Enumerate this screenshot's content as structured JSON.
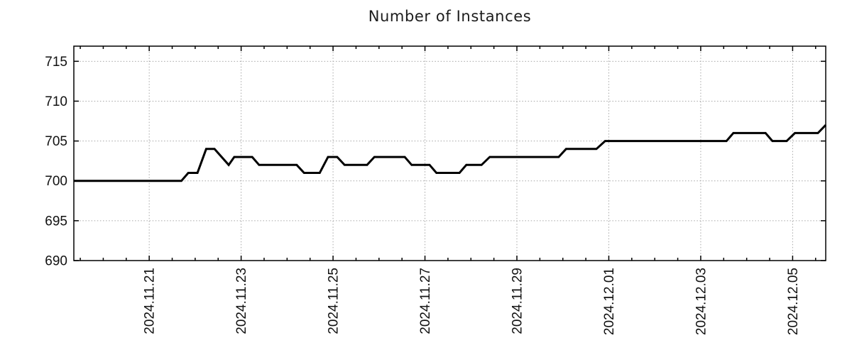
{
  "chart_data": {
    "type": "line",
    "title": "Number of Instances",
    "xlabel": "",
    "ylabel": "",
    "grid": true,
    "legend": "none",
    "x_unit": "days since 2024-11-19 00:00",
    "xlim": [
      0.36,
      16.72
    ],
    "ylim": [
      690,
      716.9
    ],
    "x_tick_label_rotation": 90,
    "x_minor_step": 0.5,
    "x_ticks": [
      {
        "t": 2,
        "label": "2024.11.21"
      },
      {
        "t": 4,
        "label": "2024.11.23"
      },
      {
        "t": 6,
        "label": "2024.11.25"
      },
      {
        "t": 8,
        "label": "2024.11.27"
      },
      {
        "t": 10,
        "label": "2024.11.29"
      },
      {
        "t": 12,
        "label": "2024.12.01"
      },
      {
        "t": 14,
        "label": "2024.12.03"
      },
      {
        "t": 16,
        "label": "2024.12.05"
      }
    ],
    "y_ticks": [
      {
        "v": 690,
        "label": "690"
      },
      {
        "v": 695,
        "label": "695"
      },
      {
        "v": 700,
        "label": "700"
      },
      {
        "v": 705,
        "label": "705"
      },
      {
        "v": 710,
        "label": "710"
      },
      {
        "v": 715,
        "label": "715"
      }
    ],
    "grid_color": "#a6a6a6",
    "axis_color": "#000000",
    "series": [
      {
        "name": "instances",
        "color": "#000000",
        "points": [
          [
            0.36,
            700
          ],
          [
            2.7,
            700
          ],
          [
            2.85,
            701
          ],
          [
            3.05,
            701
          ],
          [
            3.24,
            704
          ],
          [
            3.42,
            704
          ],
          [
            3.73,
            702
          ],
          [
            3.85,
            703
          ],
          [
            4.24,
            703
          ],
          [
            4.39,
            702
          ],
          [
            5.21,
            702
          ],
          [
            5.37,
            701
          ],
          [
            5.71,
            701
          ],
          [
            5.89,
            703
          ],
          [
            6.09,
            703
          ],
          [
            6.25,
            702
          ],
          [
            6.74,
            702
          ],
          [
            6.9,
            703
          ],
          [
            7.56,
            703
          ],
          [
            7.71,
            702
          ],
          [
            8.1,
            702
          ],
          [
            8.25,
            701
          ],
          [
            8.75,
            701
          ],
          [
            8.9,
            702
          ],
          [
            9.23,
            702
          ],
          [
            9.41,
            703
          ],
          [
            10.91,
            703
          ],
          [
            11.07,
            704
          ],
          [
            11.73,
            704
          ],
          [
            11.92,
            705
          ],
          [
            14.56,
            705
          ],
          [
            14.71,
            706
          ],
          [
            15.41,
            706
          ],
          [
            15.56,
            705
          ],
          [
            15.87,
            705
          ],
          [
            16.05,
            706
          ],
          [
            16.55,
            706
          ],
          [
            16.72,
            707
          ]
        ]
      }
    ]
  }
}
